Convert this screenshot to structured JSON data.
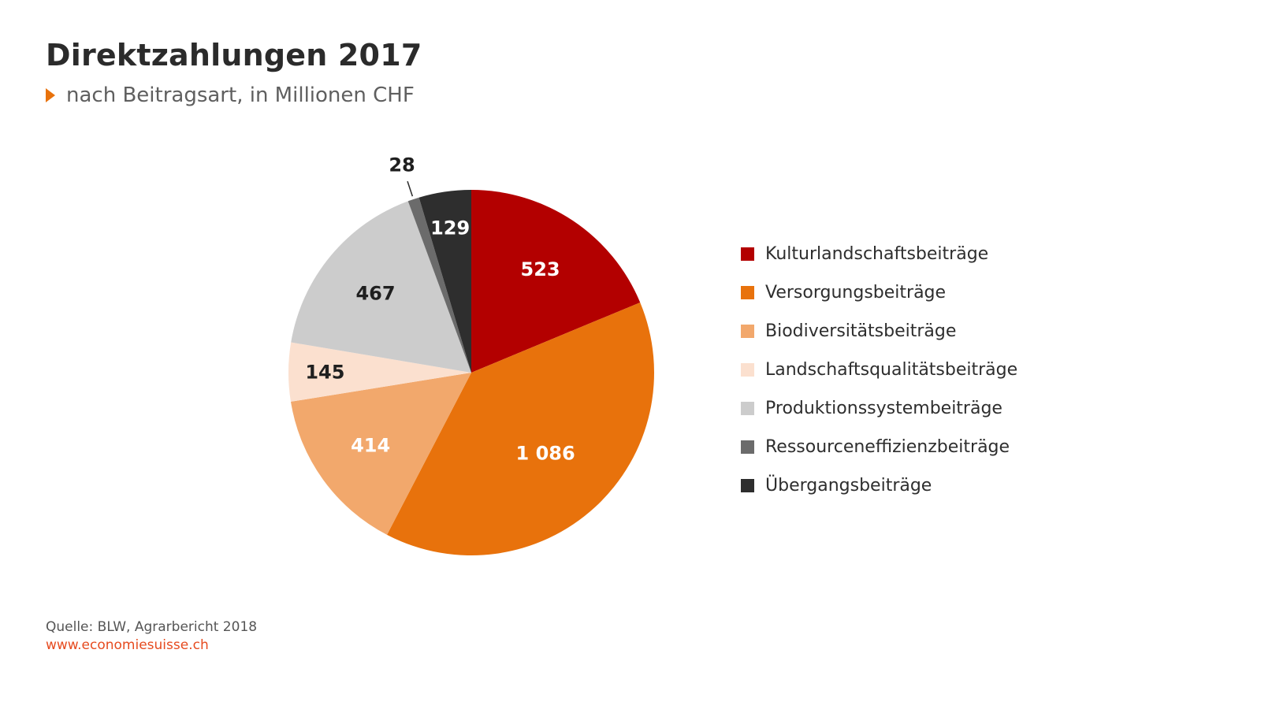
{
  "chart_data": {
    "type": "pie",
    "title": "Direktzahlungen 2017",
    "subtitle": "nach Beitragsart, in Millionen CHF",
    "unit": "Millionen CHF",
    "start_angle": "12 o'clock, clockwise",
    "legend_position": "right",
    "slices": [
      {
        "name": "Kulturlandschaftsbeiträge",
        "value": 523,
        "label": "523",
        "color": "#b30000",
        "label_color": "#ffffff"
      },
      {
        "name": "Versorgungsbeiträge",
        "value": 1086,
        "label": "1 086",
        "color": "#e8720c",
        "label_color": "#ffffff"
      },
      {
        "name": "Biodiversitätsbeiträge",
        "value": 414,
        "label": "414",
        "color": "#f2a86c",
        "label_color": "#ffffff"
      },
      {
        "name": "Landschaftsqualitätsbeiträge",
        "value": 145,
        "label": "145",
        "color": "#fbe0cf",
        "label_color": "#1f1f1f"
      },
      {
        "name": "Produktionssystembeiträge",
        "value": 467,
        "label": "467",
        "color": "#cccccc",
        "label_color": "#1f1f1f"
      },
      {
        "name": "Ressourceneffizienzbeiträge",
        "value": 28,
        "label": "28",
        "color": "#6b6b6b",
        "label_color": "#1f1f1f",
        "label_outside": true
      },
      {
        "name": "Übergangsbeiträge",
        "value": 129,
        "label": "129",
        "color": "#2e2e2e",
        "label_color": "#ffffff"
      }
    ]
  },
  "header": {
    "title": "Direktzahlungen 2017",
    "subtitle": "nach Beitragsart, in Millionen CHF"
  },
  "footer": {
    "source": "Quelle: BLW, Agrarbericht 2018",
    "website": "www.economiesuisse.ch"
  },
  "colors": {
    "accent": "#e8720c",
    "link": "#e64b1f"
  }
}
